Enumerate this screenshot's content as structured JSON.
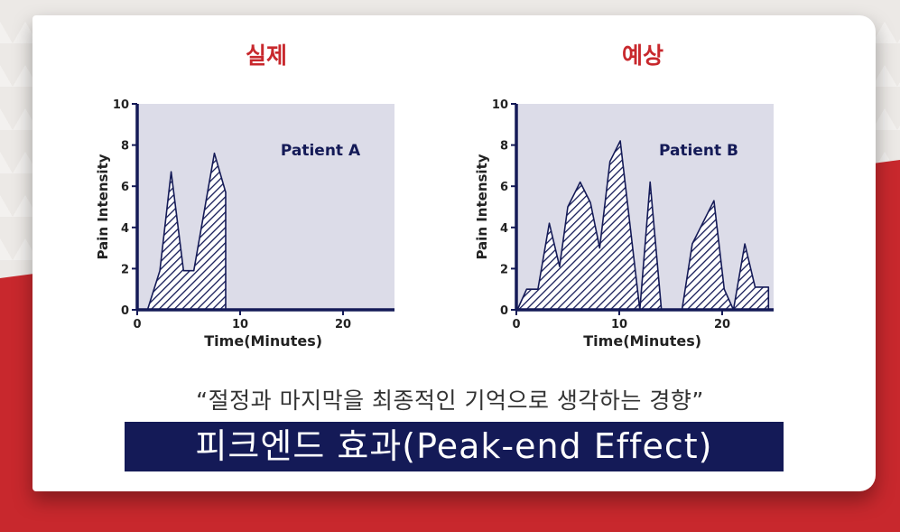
{
  "colors": {
    "background": "#ece9e6",
    "red_band": "#c8282d",
    "card": "#ffffff",
    "plot_area": "#dcdce8",
    "axis_navy": "#141a57",
    "banner": "#141a57",
    "title_red": "#c8282d"
  },
  "panels": {
    "left_title": "실제",
    "right_title": "예상"
  },
  "chart_data": [
    {
      "type": "area",
      "annotation": "Patient A",
      "xlabel": "Time(Minutes)",
      "ylabel": "Pain Intensity",
      "xlim": [
        0,
        25
      ],
      "ylim": [
        0,
        10
      ],
      "x_ticks": [
        "0",
        "10",
        "20"
      ],
      "y_ticks": [
        "0",
        "2",
        "4",
        "6",
        "8",
        "10"
      ],
      "fill": "diagonal-hatch",
      "grid": false,
      "x": [
        1,
        2.2,
        3.3,
        4.5,
        5.5,
        7.5,
        8.6,
        8.6
      ],
      "y": [
        0,
        1.9,
        6.7,
        1.9,
        1.9,
        7.6,
        5.7,
        0
      ]
    },
    {
      "type": "area",
      "annotation": "Patient B",
      "xlabel": "Time(Minutes)",
      "ylabel": "Pain Intensity",
      "xlim": [
        0,
        25
      ],
      "ylim": [
        0,
        10
      ],
      "x_ticks": [
        "0",
        "10",
        "20"
      ],
      "y_ticks": [
        "0",
        "2",
        "4",
        "6",
        "8",
        "10"
      ],
      "fill": "diagonal-hatch",
      "grid": false,
      "x": [
        0.1,
        1,
        2.1,
        3.2,
        4.2,
        5,
        6.2,
        7.2,
        8.1,
        9.1,
        10.1,
        12,
        13,
        14.1,
        16.1,
        17.1,
        19.2,
        20.2,
        21.1,
        22.2,
        23.2,
        24.5,
        24.5
      ],
      "y": [
        0,
        1,
        1,
        4.2,
        2.1,
        5,
        6.2,
        5.2,
        3,
        7.2,
        8.2,
        0,
        6.2,
        0,
        0,
        3.2,
        5.3,
        1,
        0,
        3.2,
        1.1,
        1.1,
        0
      ]
    }
  ],
  "quote": "“절정과 마지막을 최종적인 기억으로 생각하는 경향”",
  "banner_title": "피크엔드 효과(Peak-end Effect)"
}
